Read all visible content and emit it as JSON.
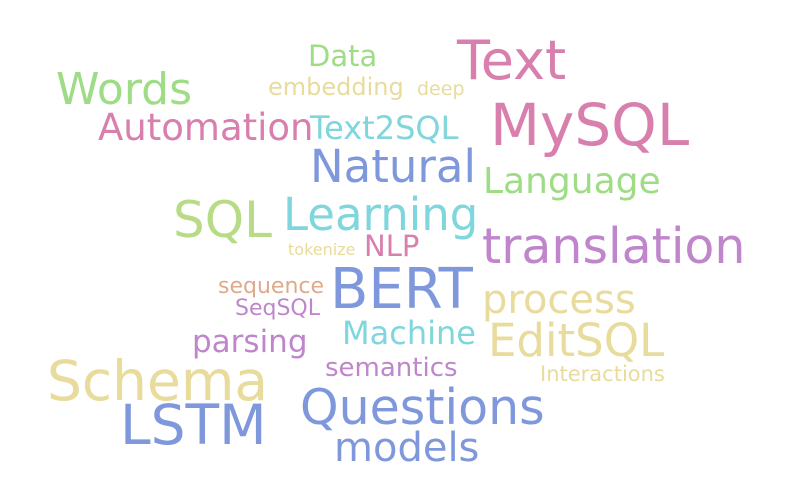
{
  "word_cloud": {
    "words": [
      {
        "key": "data",
        "text": "Data",
        "color": "#9fdc86"
      },
      {
        "key": "text",
        "text": "Text",
        "color": "#d87fae"
      },
      {
        "key": "words",
        "text": "Words",
        "color": "#9fdc86"
      },
      {
        "key": "embedding",
        "text": "embedding",
        "color": "#e8db9c"
      },
      {
        "key": "deep",
        "text": "deep",
        "color": "#e8db9c"
      },
      {
        "key": "automation",
        "text": "Automation",
        "color": "#d87fae"
      },
      {
        "key": "text2sql",
        "text": "Text2SQL",
        "color": "#7fd6dc"
      },
      {
        "key": "mysql",
        "text": "MySQL",
        "color": "#d87fae"
      },
      {
        "key": "natural",
        "text": "Natural",
        "color": "#7f98dc"
      },
      {
        "key": "language",
        "text": "Language",
        "color": "#9fdc86"
      },
      {
        "key": "sql",
        "text": "SQL",
        "color": "#b8dc86"
      },
      {
        "key": "learning",
        "text": "Learning",
        "color": "#7fd6dc"
      },
      {
        "key": "translation",
        "text": "translation",
        "color": "#bf86cc"
      },
      {
        "key": "tokenize",
        "text": "tokenize",
        "color": "#e8db9c"
      },
      {
        "key": "nlp",
        "text": "NLP",
        "color": "#d87fae"
      },
      {
        "key": "bert",
        "text": "BERT",
        "color": "#7f98dc"
      },
      {
        "key": "sequence",
        "text": "sequence",
        "color": "#e0a98c"
      },
      {
        "key": "process",
        "text": "process",
        "color": "#e8db9c"
      },
      {
        "key": "seqsql",
        "text": "SeqSQL",
        "color": "#bf86cc"
      },
      {
        "key": "machine",
        "text": "Machine",
        "color": "#7fd6dc"
      },
      {
        "key": "editsql",
        "text": "EditSQL",
        "color": "#e8db9c"
      },
      {
        "key": "parsing",
        "text": "parsing",
        "color": "#bf86cc"
      },
      {
        "key": "semantics",
        "text": "semantics",
        "color": "#bf86cc"
      },
      {
        "key": "interactions",
        "text": "Interactions",
        "color": "#e8db9c"
      },
      {
        "key": "schema",
        "text": "Schema",
        "color": "#e8db9c"
      },
      {
        "key": "questions",
        "text": "Questions",
        "color": "#7f98dc"
      },
      {
        "key": "lstm",
        "text": "LSTM",
        "color": "#7f98dc"
      },
      {
        "key": "models",
        "text": "models",
        "color": "#7f98dc"
      }
    ]
  }
}
